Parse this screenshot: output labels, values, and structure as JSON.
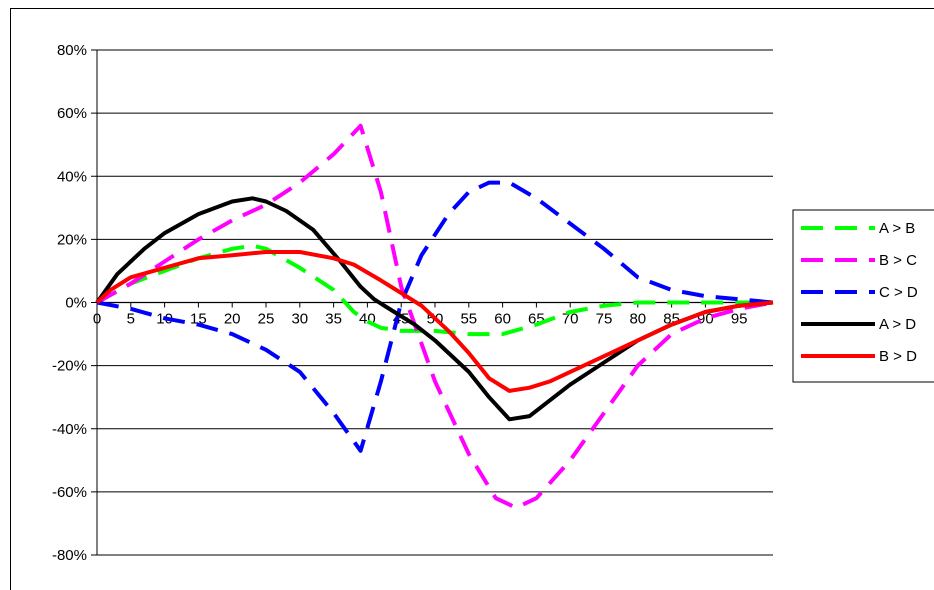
{
  "chart_data": {
    "type": "line",
    "title": "",
    "xlabel": "",
    "ylabel": "",
    "xlim": [
      0,
      100
    ],
    "ylim": [
      -80,
      80
    ],
    "y_ticks": [
      80,
      60,
      40,
      20,
      0,
      -20,
      -40,
      -60,
      -80
    ],
    "y_tick_labels": [
      "80%",
      "60%",
      "40%",
      "20%",
      "0%",
      "-20%",
      "-40%",
      "-60%",
      "-80%"
    ],
    "x_ticks": [
      0,
      5,
      10,
      15,
      20,
      25,
      30,
      35,
      40,
      45,
      50,
      55,
      60,
      65,
      70,
      75,
      80,
      85,
      90,
      95
    ],
    "x_tick_labels": [
      "0",
      "5",
      "10",
      "15",
      "20",
      "25",
      "30",
      "35",
      "40",
      "45",
      "50",
      "55",
      "60",
      "65",
      "70",
      "75",
      "80",
      "85",
      "90",
      "95"
    ],
    "grid": "horizontal",
    "legend_position": "right",
    "series": [
      {
        "name": "A > B",
        "color": "#00ff00",
        "dash": "dashed",
        "x": [
          0,
          5,
          10,
          15,
          20,
          23,
          25,
          30,
          35,
          38,
          40,
          42,
          45,
          50,
          55,
          60,
          65,
          70,
          75,
          80,
          85,
          90,
          95,
          100
        ],
        "y": [
          0,
          6,
          10,
          14,
          17,
          18,
          17,
          11,
          4,
          -3,
          -6,
          -8,
          -9,
          -9,
          -10,
          -10,
          -7,
          -3,
          -1,
          0,
          0,
          0,
          0,
          0
        ]
      },
      {
        "name": "B > C",
        "color": "#ff00ff",
        "dash": "dashed",
        "x": [
          0,
          5,
          10,
          15,
          20,
          25,
          30,
          35,
          39,
          42,
          45,
          50,
          55,
          59,
          62,
          65,
          70,
          75,
          80,
          85,
          90,
          95,
          100
        ],
        "y": [
          0,
          6,
          13,
          20,
          26,
          31,
          38,
          47,
          56,
          35,
          5,
          -25,
          -48,
          -62,
          -65,
          -62,
          -50,
          -35,
          -20,
          -10,
          -5,
          -2,
          0
        ]
      },
      {
        "name": "C > D",
        "color": "#0000ff",
        "dash": "dashed",
        "x": [
          0,
          5,
          10,
          15,
          20,
          25,
          30,
          35,
          39,
          42,
          45,
          48,
          52,
          55,
          58,
          61,
          65,
          70,
          75,
          80,
          85,
          90,
          95,
          100
        ],
        "y": [
          0,
          -2,
          -5,
          -7,
          -10,
          -15,
          -22,
          -35,
          -47,
          -25,
          0,
          15,
          28,
          35,
          38,
          38,
          33,
          25,
          17,
          8,
          4,
          2,
          1,
          0
        ]
      },
      {
        "name": "A > D",
        "color": "#000000",
        "dash": "solid",
        "x": [
          0,
          3,
          7,
          10,
          15,
          20,
          23,
          25,
          28,
          32,
          36,
          39,
          41,
          44,
          47,
          50,
          55,
          58,
          61,
          64,
          67,
          70,
          75,
          80,
          85,
          90,
          95,
          100
        ],
        "y": [
          0,
          9,
          17,
          22,
          28,
          32,
          33,
          32,
          29,
          23,
          13,
          5,
          1,
          -3,
          -7,
          -12,
          -22,
          -30,
          -37,
          -36,
          -31,
          -26,
          -19,
          -12,
          -7,
          -3,
          -1,
          0
        ]
      },
      {
        "name": "B > D",
        "color": "#ff0000",
        "dash": "solid",
        "x": [
          0,
          2,
          5,
          10,
          15,
          20,
          25,
          30,
          35,
          38,
          42,
          45,
          48,
          52,
          55,
          58,
          61,
          64,
          67,
          70,
          75,
          80,
          85,
          90,
          95,
          100
        ],
        "y": [
          0,
          4,
          8,
          11,
          14,
          15,
          16,
          16,
          14,
          12,
          7,
          3,
          -1,
          -9,
          -16,
          -24,
          -28,
          -27,
          -25,
          -22,
          -17,
          -12,
          -7,
          -3,
          -1,
          0
        ]
      }
    ]
  }
}
